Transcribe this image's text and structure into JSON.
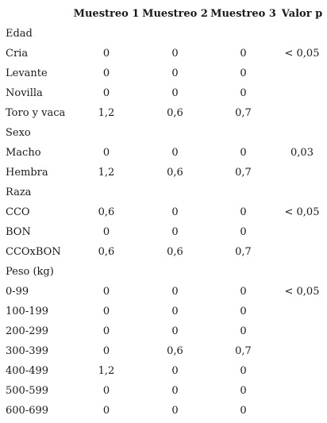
{
  "header": {
    "col_label": "",
    "col_m1": "Muestreo 1",
    "col_m2": "Muestreo 2",
    "col_m3": "Muestreo 3",
    "col_p": "Valor p"
  },
  "groups": [
    {
      "title": "Edad",
      "rows": [
        {
          "label": "Cria",
          "m1": "0",
          "m2": "0",
          "m3": "0",
          "p": "< 0,05"
        },
        {
          "label": "Levante",
          "m1": "0",
          "m2": "0",
          "m3": "0",
          "p": ""
        },
        {
          "label": "Novilla",
          "m1": "0",
          "m2": "0",
          "m3": "0",
          "p": ""
        },
        {
          "label": "Toro y vaca",
          "m1": "1,2",
          "m2": "0,6",
          "m3": "0,7",
          "p": ""
        }
      ]
    },
    {
      "title": "Sexo",
      "rows": [
        {
          "label": "Macho",
          "m1": "0",
          "m2": "0",
          "m3": "0",
          "p": "0,03"
        },
        {
          "label": "Hembra",
          "m1": "1,2",
          "m2": "0,6",
          "m3": "0,7",
          "p": ""
        }
      ]
    },
    {
      "title": "Raza",
      "rows": [
        {
          "label": "CCO",
          "m1": "0,6",
          "m2": "0",
          "m3": "0",
          "p": "< 0,05"
        },
        {
          "label": "BON",
          "m1": "0",
          "m2": "0",
          "m3": "0",
          "p": ""
        },
        {
          "label": "CCOxBON",
          "m1": "0,6",
          "m2": "0,6",
          "m3": "0,7",
          "p": ""
        }
      ]
    },
    {
      "title": "Peso (kg)",
      "rows": [
        {
          "label": "0-99",
          "m1": "0",
          "m2": "0",
          "m3": "0",
          "p": "< 0,05"
        },
        {
          "label": "100-199",
          "m1": "0",
          "m2": "0",
          "m3": "0",
          "p": ""
        },
        {
          "label": "200-299",
          "m1": "0",
          "m2": "0",
          "m3": "0",
          "p": ""
        },
        {
          "label": "300-399",
          "m1": "0",
          "m2": "0,6",
          "m3": "0,7",
          "p": ""
        },
        {
          "label": "400-499",
          "m1": "1,2",
          "m2": "0",
          "m3": "0",
          "p": ""
        },
        {
          "label": "500-599",
          "m1": "0",
          "m2": "0",
          "m3": "0",
          "p": ""
        },
        {
          "label": "600-699",
          "m1": "0",
          "m2": "0",
          "m3": "0",
          "p": ""
        }
      ]
    }
  ]
}
